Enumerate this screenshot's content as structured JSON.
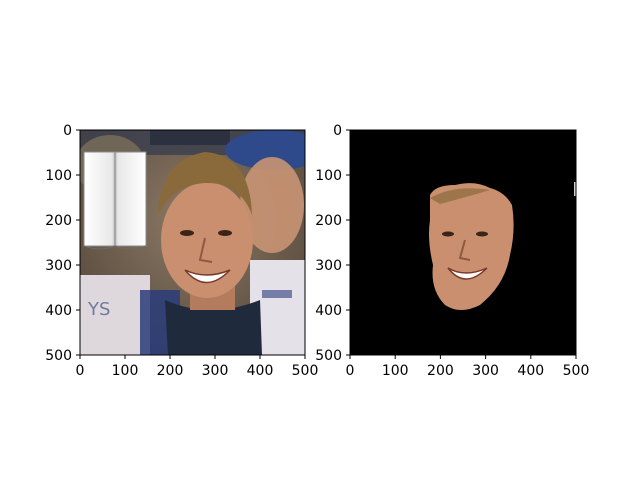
{
  "chart_data": [
    {
      "type": "image",
      "title": "",
      "xlabel": "",
      "ylabel": "",
      "xlim": [
        0,
        500
      ],
      "ylim": [
        500,
        0
      ],
      "x_ticks": [
        0,
        100,
        200,
        300,
        400,
        500
      ],
      "y_ticks": [
        0,
        100,
        200,
        300,
        400,
        500
      ],
      "grid": false,
      "image_content": "photo",
      "background_color": "#6f5a44"
    },
    {
      "type": "image",
      "title": "",
      "xlabel": "",
      "ylabel": "",
      "xlim": [
        0,
        500
      ],
      "ylim": [
        500,
        0
      ],
      "x_ticks": [
        0,
        100,
        200,
        300,
        400,
        500
      ],
      "y_ticks": [
        0,
        100,
        200,
        300,
        400,
        500
      ],
      "grid": false,
      "image_content": "segmented face mask",
      "background_color": "#000000"
    }
  ],
  "colors": {
    "axis": "#000000",
    "skin": "#c98f6e",
    "hair": "#8a6a3a",
    "mask_bg": "#000000"
  }
}
